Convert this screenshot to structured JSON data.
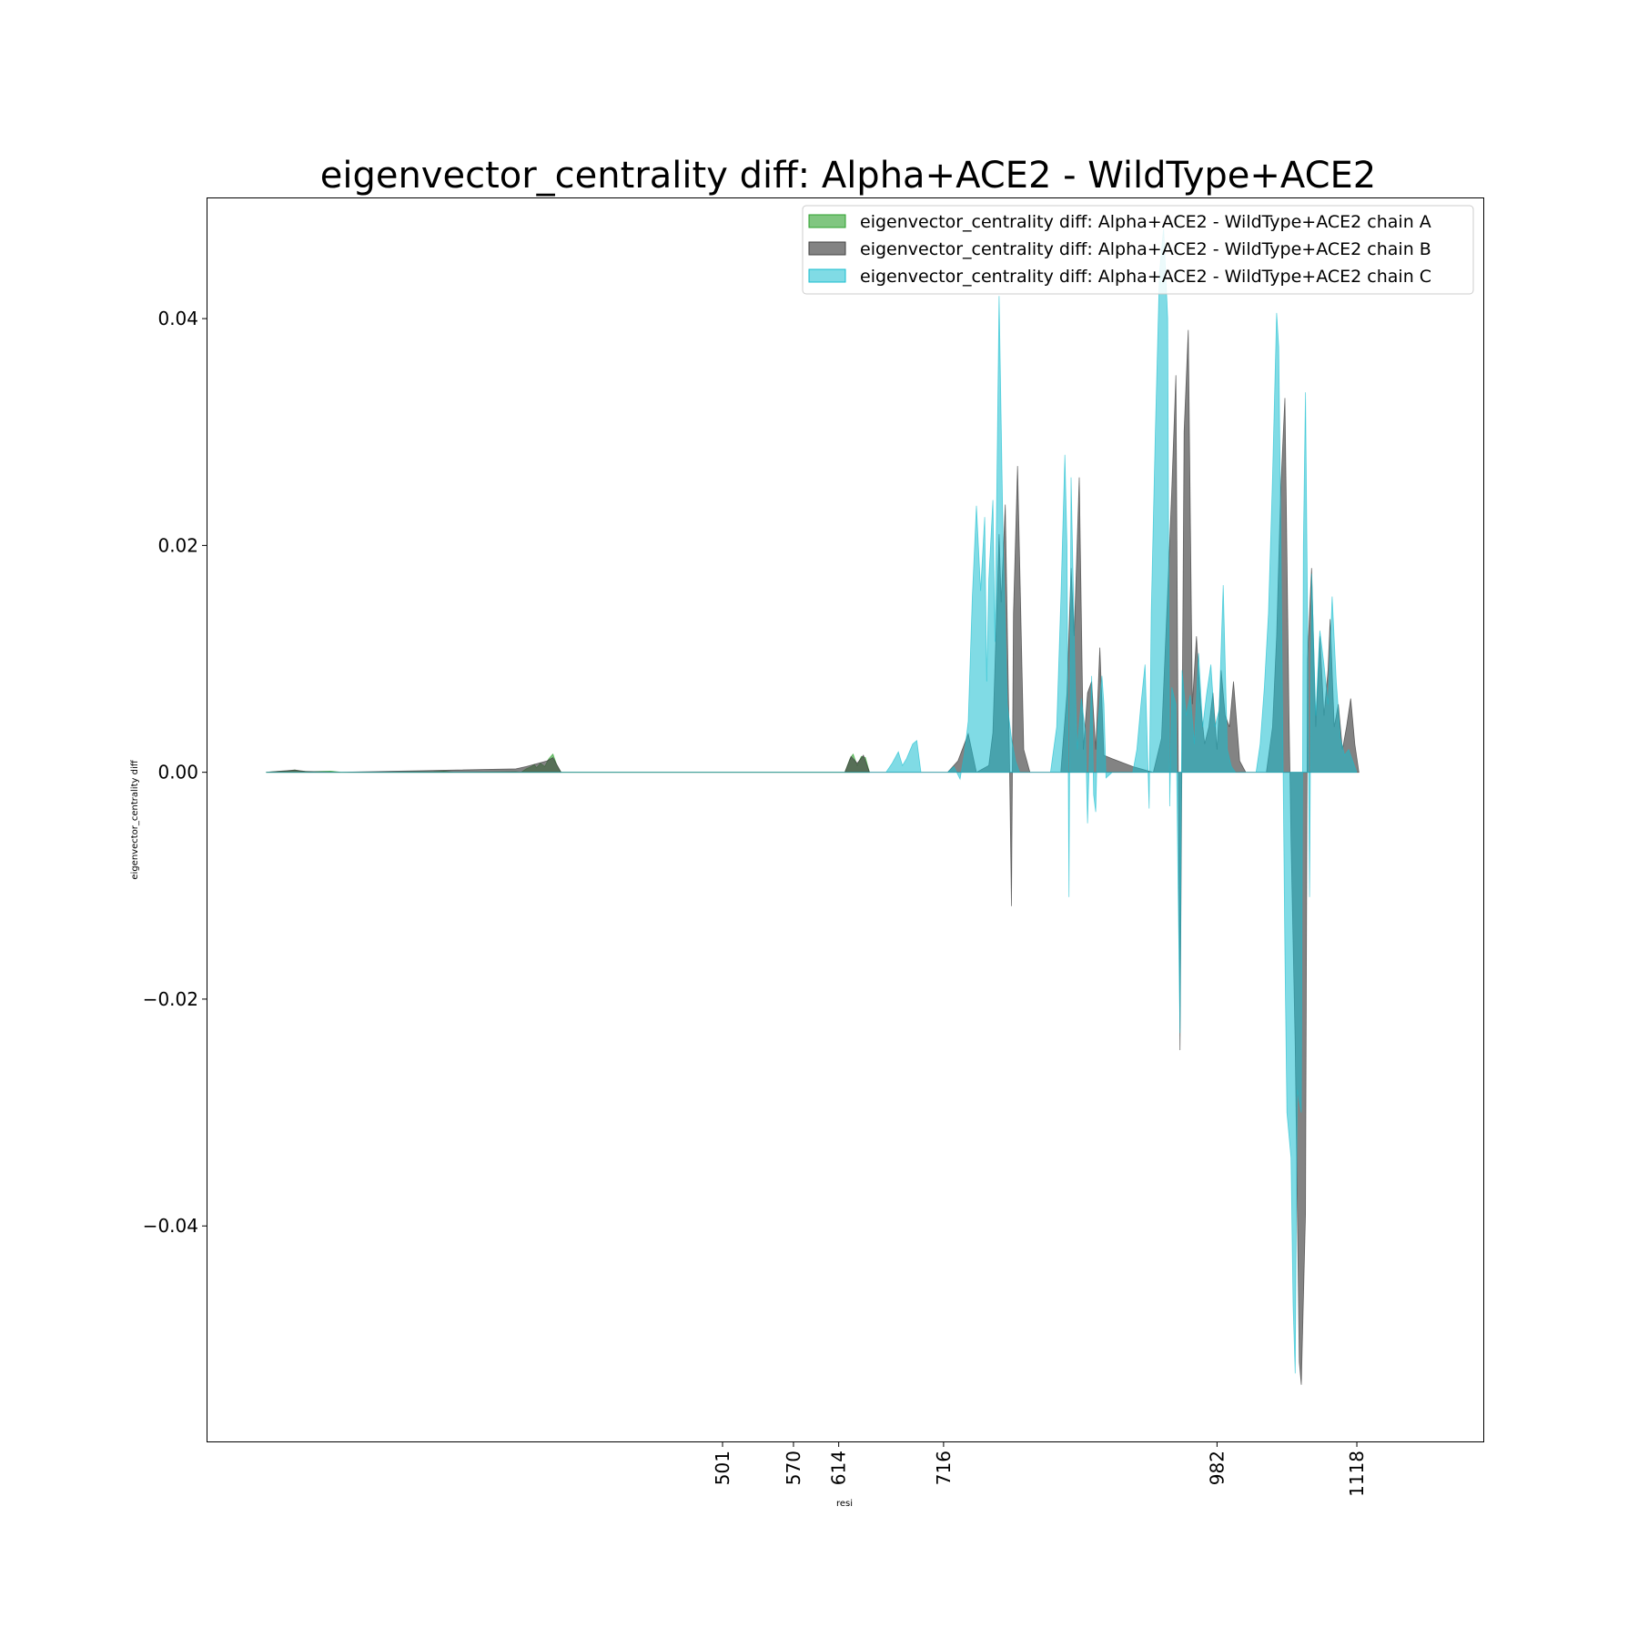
{
  "chart_data": {
    "type": "area",
    "title": "eigenvector_centrality diff: Alpha+ACE2 - WildType+ACE2",
    "xlabel": "resi",
    "ylabel": "eigenvector_centrality diff",
    "x_ticks": [
      501,
      570,
      614,
      716,
      982,
      1118
    ],
    "y_ticks": [
      -0.04,
      -0.02,
      0.0,
      0.02,
      0.04
    ],
    "y_tick_labels": [
      "−0.04",
      "−0.02",
      "0.00",
      "0.02",
      "0.04"
    ],
    "xlim": [
      0,
      1241
    ],
    "ylim": [
      -0.059,
      0.0506
    ],
    "grid": false,
    "legend_position": "top-right",
    "series": [
      {
        "name": "eigenvector_centrality diff: Alpha+ACE2 - WildType+ACE2 chain A",
        "color": "#2ca02c",
        "opacity": 0.6,
        "points": [
          [
            57,
            0
          ],
          [
            70,
            8e-05
          ],
          [
            78,
            0.0001
          ],
          [
            85,
            0.0002
          ],
          [
            90,
            0.0001
          ],
          [
            100,
            5e-05
          ],
          [
            120,
            0.0001
          ],
          [
            130,
            0
          ],
          [
            220,
            5e-05
          ],
          [
            230,
            0.0001
          ],
          [
            240,
            0
          ],
          [
            300,
            5e-05
          ],
          [
            305,
            0
          ],
          [
            310,
            0.0003
          ],
          [
            315,
            0.0005
          ],
          [
            318,
            0.0007
          ],
          [
            320,
            0.0004
          ],
          [
            324,
            0.0008
          ],
          [
            328,
            0.0005
          ],
          [
            332,
            0.0012
          ],
          [
            336,
            0.0016
          ],
          [
            340,
            0.0006
          ],
          [
            344,
            0
          ],
          [
            620,
            0
          ],
          [
            625,
            0.0012
          ],
          [
            628,
            0.0016
          ],
          [
            632,
            0.0006
          ],
          [
            636,
            0.0014
          ],
          [
            640,
            0.0013
          ],
          [
            644,
            0
          ]
        ]
      },
      {
        "name": "eigenvector_centrality diff: Alpha+ACE2 - WildType+ACE2 chain B",
        "color": "#404040",
        "opacity": 0.65,
        "points": [
          [
            57,
            0
          ],
          [
            85,
            0.0002
          ],
          [
            95,
            8e-05
          ],
          [
            130,
            0
          ],
          [
            300,
            0.0003
          ],
          [
            310,
            0.0005
          ],
          [
            330,
            0.001
          ],
          [
            336,
            0.0013
          ],
          [
            344,
            0
          ],
          [
            620,
            0
          ],
          [
            626,
            0.0014
          ],
          [
            632,
            0.0008
          ],
          [
            638,
            0.0015
          ],
          [
            644,
            0
          ],
          [
            720,
            0
          ],
          [
            730,
            0.001
          ],
          [
            740,
            0.0034
          ],
          [
            748,
            0
          ],
          [
            760,
            0.0006
          ],
          [
            764,
            0.0035
          ],
          [
            770,
            0.021
          ],
          [
            772,
            0.015
          ],
          [
            776,
            0.0236
          ],
          [
            780,
            0.0018
          ],
          [
            782,
            -0.0118
          ],
          [
            784,
            0.014
          ],
          [
            788,
            0.027
          ],
          [
            794,
            0.002
          ],
          [
            800,
            0
          ],
          [
            830,
            0
          ],
          [
            836,
            0.007
          ],
          [
            840,
            0.018
          ],
          [
            843,
            0.012
          ],
          [
            848,
            0.026
          ],
          [
            852,
            0.002
          ],
          [
            856,
            0.007
          ],
          [
            860,
            0.008
          ],
          [
            864,
            0.002
          ],
          [
            868,
            0.011
          ],
          [
            872,
            0.0015
          ],
          [
            880,
            0.0012
          ],
          [
            900,
            0.0005
          ],
          [
            920,
            0
          ],
          [
            928,
            0.003
          ],
          [
            934,
            0.016
          ],
          [
            938,
            0.025
          ],
          [
            942,
            0.035
          ],
          [
            946,
            -0.0245
          ],
          [
            950,
            0.03
          ],
          [
            954,
            0.039
          ],
          [
            958,
            0.006
          ],
          [
            962,
            0.012
          ],
          [
            966,
            0.006
          ],
          [
            970,
            0.0025
          ],
          [
            974,
            0.004
          ],
          [
            978,
            0.007
          ],
          [
            982,
            0.002
          ],
          [
            986,
            0.009
          ],
          [
            990,
            0.005
          ],
          [
            994,
            0.004
          ],
          [
            998,
            0.008
          ],
          [
            1004,
            0.001
          ],
          [
            1010,
            0
          ],
          [
            1030,
            0
          ],
          [
            1036,
            0.004
          ],
          [
            1040,
            0.012
          ],
          [
            1044,
            0.025
          ],
          [
            1048,
            0.033
          ],
          [
            1052,
            0.005
          ],
          [
            1054,
            -0.006
          ],
          [
            1058,
            -0.024
          ],
          [
            1062,
            -0.052
          ],
          [
            1064,
            -0.054
          ],
          [
            1068,
            -0.039
          ],
          [
            1070,
            0.01
          ],
          [
            1074,
            0.018
          ],
          [
            1078,
            0.004
          ],
          [
            1082,
            0.012
          ],
          [
            1086,
            0.005
          ],
          [
            1090,
            0.009
          ],
          [
            1092,
            0.0135
          ],
          [
            1096,
            0.004
          ],
          [
            1100,
            0.006
          ],
          [
            1104,
            0.002
          ],
          [
            1108,
            0.004
          ],
          [
            1112,
            0.0065
          ],
          [
            1116,
            0.0025
          ],
          [
            1120,
            0
          ]
        ]
      },
      {
        "name": "eigenvector_centrality diff: Alpha+ACE2 - WildType+ACE2 chain C",
        "color": "#17becf",
        "opacity": 0.55,
        "points": [
          [
            57,
            0
          ],
          [
            130,
            0
          ],
          [
            620,
            0
          ],
          [
            640,
            0
          ],
          [
            660,
            0
          ],
          [
            666,
            0.0008
          ],
          [
            672,
            0.0018
          ],
          [
            676,
            0.0006
          ],
          [
            680,
            0.0012
          ],
          [
            686,
            0.0025
          ],
          [
            690,
            0.0028
          ],
          [
            694,
            0
          ],
          [
            720,
            0
          ],
          [
            726,
            0.0005
          ],
          [
            732,
            -0.0006
          ],
          [
            736,
            0.0015
          ],
          [
            740,
            0.0045
          ],
          [
            744,
            0.0155
          ],
          [
            748,
            0.0235
          ],
          [
            752,
            0.016
          ],
          [
            756,
            0.0225
          ],
          [
            758,
            0.008
          ],
          [
            760,
            0.017
          ],
          [
            764,
            0.024
          ],
          [
            766,
            0.0115
          ],
          [
            770,
            0.042
          ],
          [
            774,
            0.02
          ],
          [
            778,
            0.006
          ],
          [
            782,
            0.003
          ],
          [
            786,
            0.001
          ],
          [
            790,
            0
          ],
          [
            820,
            0
          ],
          [
            826,
            0.004
          ],
          [
            830,
            0.015
          ],
          [
            834,
            0.028
          ],
          [
            836,
            0.02
          ],
          [
            838,
            -0.011
          ],
          [
            840,
            0.026
          ],
          [
            844,
            0.008
          ],
          [
            846,
            0.002
          ],
          [
            850,
            0.0065
          ],
          [
            854,
            0.0035
          ],
          [
            856,
            -0.0045
          ],
          [
            860,
            0.0085
          ],
          [
            862,
            -0.002
          ],
          [
            864,
            -0.0035
          ],
          [
            866,
            0.004
          ],
          [
            870,
            0.0085
          ],
          [
            872,
            0.006
          ],
          [
            874,
            -0.0005
          ],
          [
            880,
            0
          ],
          [
            900,
            0
          ],
          [
            904,
            0.002
          ],
          [
            908,
            0.006
          ],
          [
            912,
            0.0095
          ],
          [
            916,
            -0.0032
          ],
          [
            918,
            0.014
          ],
          [
            922,
            0.03
          ],
          [
            926,
            0.044
          ],
          [
            930,
            0.048
          ],
          [
            934,
            0.04
          ],
          [
            936,
            -0.003
          ],
          [
            938,
            0.0075
          ],
          [
            942,
            0.006
          ],
          [
            944,
            -0.0095
          ],
          [
            946,
            -0.023
          ],
          [
            948,
            0.009
          ],
          [
            952,
            0.005
          ],
          [
            956,
            0.0068
          ],
          [
            960,
            0.0025
          ],
          [
            964,
            0.0105
          ],
          [
            968,
            0.004
          ],
          [
            972,
            0.007
          ],
          [
            976,
            0.0095
          ],
          [
            980,
            0.004
          ],
          [
            984,
            0.0055
          ],
          [
            988,
            0.0165
          ],
          [
            992,
            0.002
          ],
          [
            996,
            0.0005
          ],
          [
            1000,
            0
          ],
          [
            1020,
            0
          ],
          [
            1024,
            0.0025
          ],
          [
            1028,
            0.0075
          ],
          [
            1032,
            0.014
          ],
          [
            1036,
            0.026
          ],
          [
            1040,
            0.0405
          ],
          [
            1042,
            0.0375
          ],
          [
            1044,
            0.022
          ],
          [
            1048,
            -0.016
          ],
          [
            1050,
            -0.03
          ],
          [
            1054,
            -0.034
          ],
          [
            1056,
            -0.047
          ],
          [
            1058,
            -0.053
          ],
          [
            1060,
            -0.028
          ],
          [
            1064,
            -0.03
          ],
          [
            1066,
            0.02
          ],
          [
            1068,
            0.0335
          ],
          [
            1070,
            0.0145
          ],
          [
            1072,
            -0.011
          ],
          [
            1074,
            0.0175
          ],
          [
            1078,
            0.005
          ],
          [
            1082,
            0.0125
          ],
          [
            1086,
            0.0095
          ],
          [
            1090,
            0.006
          ],
          [
            1094,
            0.0155
          ],
          [
            1098,
            0.008
          ],
          [
            1102,
            0.003
          ],
          [
            1106,
            0.0015
          ],
          [
            1110,
            0.002
          ],
          [
            1114,
            0.001
          ],
          [
            1118,
            0
          ]
        ]
      }
    ]
  }
}
